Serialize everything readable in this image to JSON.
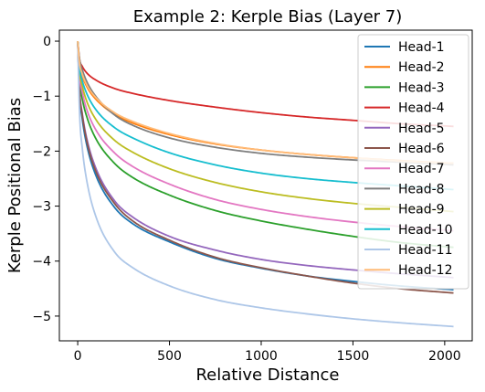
{
  "chart_data": {
    "type": "line",
    "title": "Example 2: Kerple Bias (Layer 7)",
    "xlabel": "Relative Distance",
    "ylabel": "Kerple Positional Bias",
    "xlim": [
      -100,
      2150
    ],
    "ylim": [
      -5.45,
      0.2
    ],
    "xticks": [
      0,
      500,
      1000,
      1500,
      2000
    ],
    "yticks": [
      0,
      -1,
      -2,
      -3,
      -4,
      -5
    ],
    "xtick_labels": [
      "0",
      "500",
      "1000",
      "1500",
      "2000"
    ],
    "ytick_labels": [
      "0",
      "−1",
      "−2",
      "−3",
      "−4",
      "−5"
    ],
    "grid": false,
    "legend_position": "top-right",
    "x": [
      0,
      10,
      25,
      50,
      100,
      200,
      300,
      500,
      750,
      1000,
      1250,
      1500,
      1750,
      2048
    ],
    "series": [
      {
        "name": "Head-1",
        "color": "#1f77b4",
        "values": [
          0,
          -0.95,
          -1.42,
          -1.9,
          -2.45,
          -3.02,
          -3.32,
          -3.65,
          -3.95,
          -4.13,
          -4.27,
          -4.37,
          -4.45,
          -4.52
        ]
      },
      {
        "name": "Head-2",
        "color": "#ff7f0e",
        "values": [
          0,
          -0.42,
          -0.63,
          -0.83,
          -1.06,
          -1.33,
          -1.49,
          -1.7,
          -1.87,
          -1.98,
          -2.06,
          -2.12,
          -2.17,
          -2.22
        ]
      },
      {
        "name": "Head-3",
        "color": "#2ca02c",
        "values": [
          0,
          -0.7,
          -1.05,
          -1.38,
          -1.78,
          -2.22,
          -2.48,
          -2.8,
          -3.08,
          -3.27,
          -3.42,
          -3.55,
          -3.66,
          -3.75
        ]
      },
      {
        "name": "Head-4",
        "color": "#d62728",
        "values": [
          0,
          -0.33,
          -0.46,
          -0.58,
          -0.71,
          -0.86,
          -0.95,
          -1.08,
          -1.2,
          -1.3,
          -1.38,
          -1.44,
          -1.5,
          -1.55
        ]
      },
      {
        "name": "Head-5",
        "color": "#9467bd",
        "values": [
          0,
          -0.88,
          -1.32,
          -1.78,
          -2.32,
          -2.9,
          -3.2,
          -3.55,
          -3.8,
          -3.97,
          -4.08,
          -4.16,
          -4.23,
          -4.3
        ]
      },
      {
        "name": "Head-6",
        "color": "#8c564b",
        "values": [
          0,
          -0.9,
          -1.35,
          -1.83,
          -2.38,
          -2.95,
          -3.27,
          -3.62,
          -3.93,
          -4.12,
          -4.27,
          -4.4,
          -4.5,
          -4.58
        ]
      },
      {
        "name": "Head-7",
        "color": "#e377c2",
        "values": [
          0,
          -0.62,
          -0.93,
          -1.25,
          -1.62,
          -2.03,
          -2.28,
          -2.6,
          -2.88,
          -3.06,
          -3.19,
          -3.29,
          -3.37,
          -3.45
        ]
      },
      {
        "name": "Head-8",
        "color": "#7f7f7f",
        "values": [
          0,
          -0.32,
          -0.52,
          -0.74,
          -1.01,
          -1.34,
          -1.53,
          -1.76,
          -1.93,
          -2.04,
          -2.11,
          -2.16,
          -2.2,
          -2.25
        ]
      },
      {
        "name": "Head-9",
        "color": "#bcbd22",
        "values": [
          0,
          -0.55,
          -0.82,
          -1.1,
          -1.43,
          -1.8,
          -2.02,
          -2.32,
          -2.57,
          -2.74,
          -2.86,
          -2.95,
          -3.02,
          -3.1
        ]
      },
      {
        "name": "Head-10",
        "color": "#17becf",
        "values": [
          0,
          -0.48,
          -0.72,
          -0.96,
          -1.25,
          -1.57,
          -1.76,
          -2.03,
          -2.25,
          -2.4,
          -2.5,
          -2.57,
          -2.63,
          -2.7
        ]
      },
      {
        "name": "Head-11",
        "color": "#aec7e8",
        "values": [
          0,
          -1.3,
          -1.95,
          -2.55,
          -3.2,
          -3.83,
          -4.12,
          -4.45,
          -4.7,
          -4.85,
          -4.96,
          -5.05,
          -5.12,
          -5.19
        ]
      },
      {
        "name": "Head-12",
        "color": "#ffbb78",
        "values": [
          0,
          -0.4,
          -0.6,
          -0.8,
          -1.03,
          -1.3,
          -1.46,
          -1.68,
          -1.86,
          -1.98,
          -2.06,
          -2.12,
          -2.18,
          -2.22
        ]
      }
    ]
  }
}
